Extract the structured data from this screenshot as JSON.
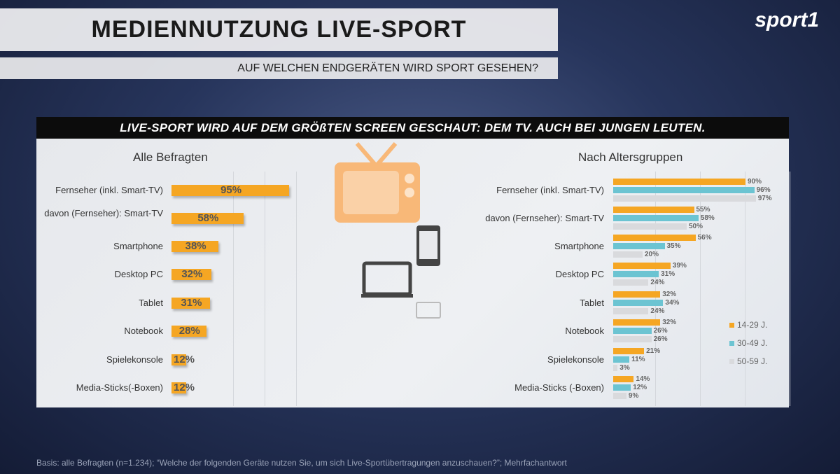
{
  "header": {
    "title": "MEDIENNUTZUNG LIVE-SPORT",
    "subtitle": "AUF WELCHEN ENDGERÄTEN WIRD SPORT GESEHEN?",
    "logo": "sport1"
  },
  "banner": "LIVE-SPORT WIRD AUF DEM GRÖßTEN SCREEN GESCHAUT: DEM TV. AUCH BEI JUNGEN LEUTEN.",
  "colors": {
    "orange": "#f5a623",
    "teal": "#6cc4d2",
    "grey": "#d9dadd"
  },
  "footnote": "Basis: alle Befragten (n=1.234); “Welche der folgenden Geräte nutzen Sie, um sich Live-Sportübertragungen anzuschauen?”; Mehrfachantwort",
  "chart_data": [
    {
      "type": "bar",
      "orientation": "horizontal",
      "title": "Alle Befragten",
      "unit": "%",
      "categories": [
        "Fernseher (inkl. Smart-TV)",
        "davon (Fernseher): Smart-TV",
        "Smartphone",
        "Desktop PC",
        "Tablet",
        "Notebook",
        "Spielekonsole",
        "Media-Sticks(-Boxen)"
      ],
      "values": [
        95,
        58,
        38,
        32,
        31,
        28,
        12,
        12
      ],
      "labels": [
        "95%",
        "58%",
        "38%",
        "32%",
        "31%",
        "28%",
        "12%",
        "12%"
      ]
    },
    {
      "type": "bar",
      "orientation": "horizontal",
      "title": "Nach Altersgruppen",
      "unit": "%",
      "categories": [
        "Fernseher (inkl. Smart-TV)",
        "davon (Fernseher): Smart-TV",
        "Smartphone",
        "Desktop PC",
        "Tablet",
        "Notebook",
        "Spielekonsole",
        "Media-Sticks (-Boxen)"
      ],
      "legend_position": "right",
      "series": [
        {
          "name": "14-29 J.",
          "values": [
            90,
            55,
            56,
            39,
            32,
            32,
            21,
            14
          ]
        },
        {
          "name": "30-49 J.",
          "values": [
            96,
            58,
            35,
            31,
            34,
            26,
            11,
            12
          ]
        },
        {
          "name": "50-59 J.",
          "values": [
            97,
            50,
            20,
            24,
            24,
            26,
            3,
            9
          ]
        }
      ]
    }
  ]
}
